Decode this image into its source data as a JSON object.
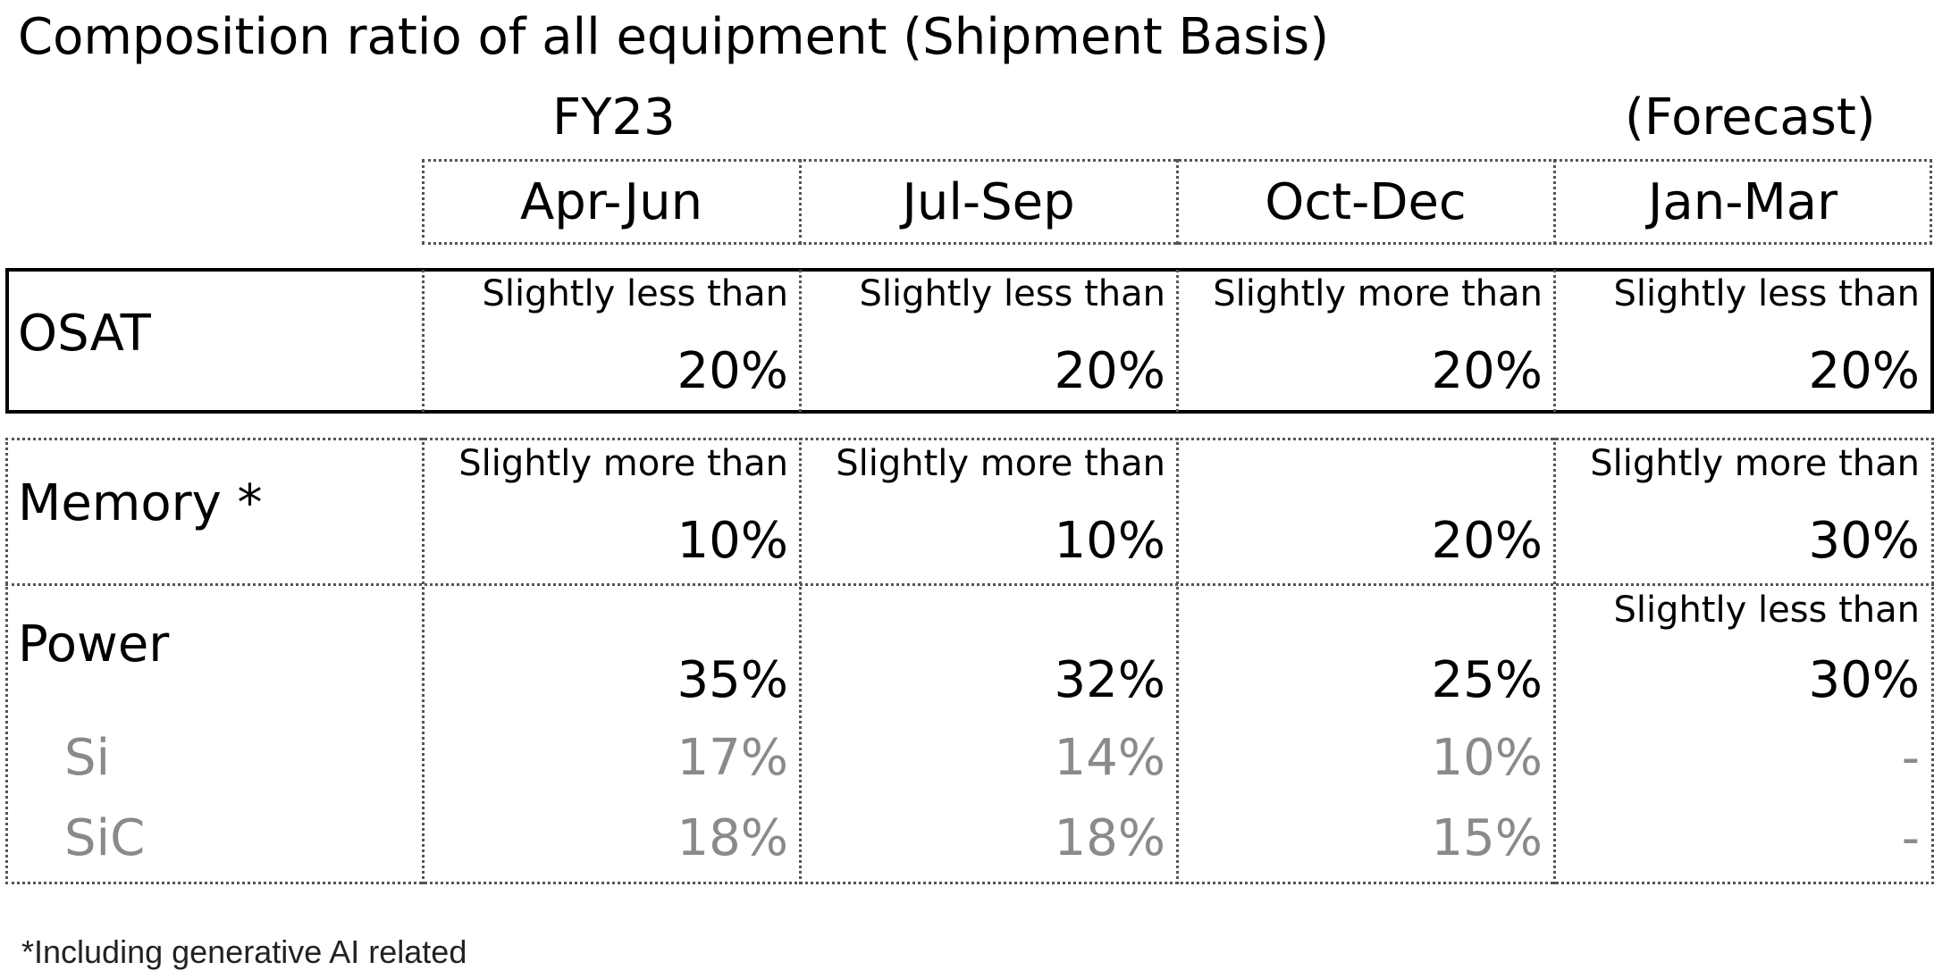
{
  "title": "Composition ratio of all equipment (Shipment Basis)",
  "fiscal_year": "FY23",
  "forecast_label": "(Forecast)",
  "columns": [
    "Apr-Jun",
    "Jul-Sep",
    "Oct-Dec",
    "Jan-Mar"
  ],
  "rows": {
    "osat": {
      "label": "OSAT",
      "cells": [
        {
          "qualifier": "Slightly less than",
          "value": "20%"
        },
        {
          "qualifier": "Slightly less than",
          "value": "20%"
        },
        {
          "qualifier": "Slightly more than",
          "value": "20%"
        },
        {
          "qualifier": "Slightly less than",
          "value": "20%"
        }
      ]
    },
    "memory": {
      "label": "Memory *",
      "cells": [
        {
          "qualifier": "Slightly more than",
          "value": "10%"
        },
        {
          "qualifier": "Slightly more than",
          "value": "10%"
        },
        {
          "qualifier": "",
          "value": "20%"
        },
        {
          "qualifier": "Slightly more than",
          "value": "30%"
        }
      ]
    },
    "power": {
      "label": "Power",
      "cells": [
        {
          "qualifier": "",
          "value": "35%"
        },
        {
          "qualifier": "",
          "value": "32%"
        },
        {
          "qualifier": "",
          "value": "25%"
        },
        {
          "qualifier": "Slightly less than",
          "value": "30%"
        }
      ]
    },
    "si": {
      "label": "Si",
      "cells": [
        "17%",
        "14%",
        "10%",
        "-"
      ]
    },
    "sic": {
      "label": "SiC",
      "cells": [
        "18%",
        "18%",
        "15%",
        "-"
      ]
    }
  },
  "footnote": "*Including generative AI related"
}
